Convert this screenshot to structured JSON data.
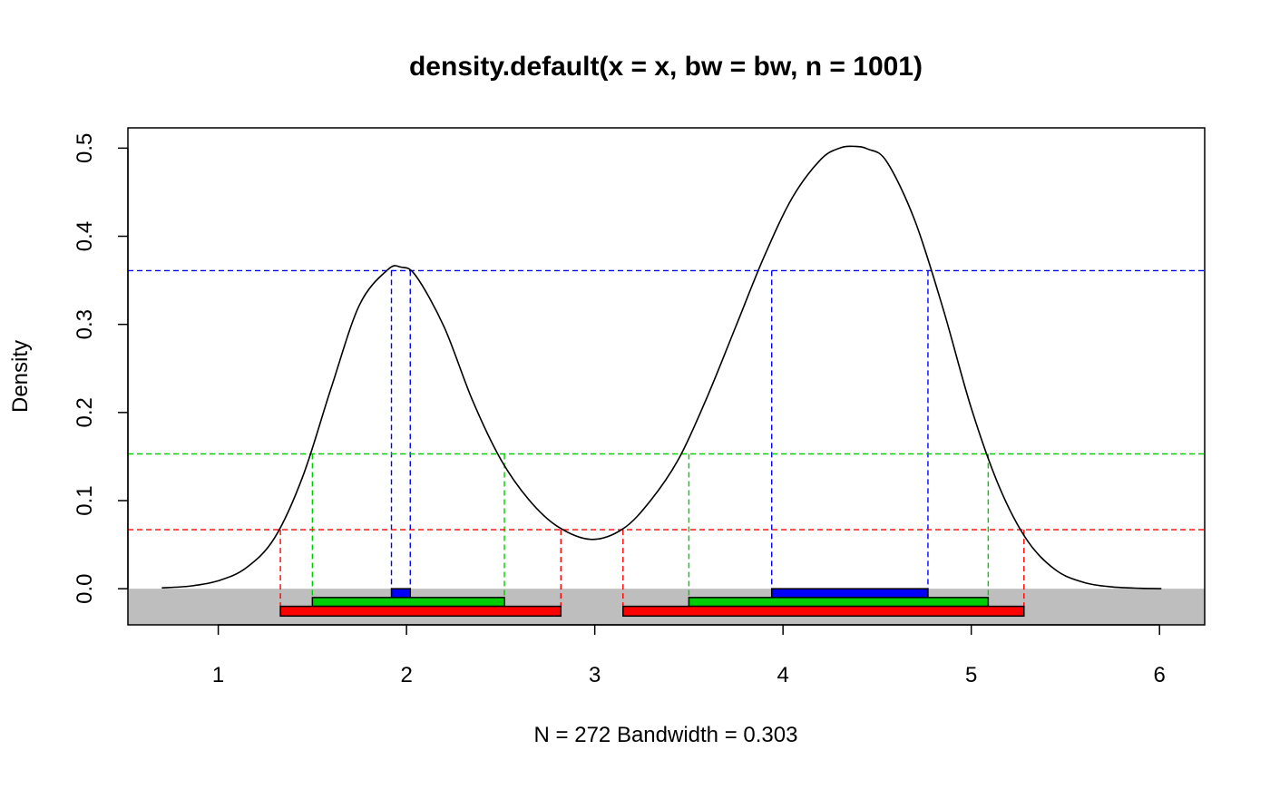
{
  "chart_data": {
    "type": "line",
    "title": "density.default(x = x, bw = bw, n = 1001)",
    "xlabel": "N = 272   Bandwidth = 0.303",
    "ylabel": "Density",
    "xlim": [
      0.52,
      6.24
    ],
    "ylim": [
      -0.041,
      0.523
    ],
    "x_ticks": [
      1,
      2,
      3,
      4,
      5,
      6
    ],
    "y_ticks": [
      0.0,
      0.1,
      0.2,
      0.3,
      0.4,
      0.5
    ],
    "x_tick_labels": [
      "1",
      "2",
      "3",
      "4",
      "5",
      "6"
    ],
    "y_tick_labels": [
      "0.0",
      "0.1",
      "0.2",
      "0.3",
      "0.4",
      "0.5"
    ],
    "grid": false,
    "density_curve": {
      "color": "#000000",
      "x": [
        0.7,
        0.85,
        1.0,
        1.15,
        1.3,
        1.45,
        1.6,
        1.75,
        1.9,
        1.97,
        2.05,
        2.2,
        2.35,
        2.5,
        2.65,
        2.8,
        2.98,
        3.15,
        3.3,
        3.45,
        3.6,
        3.75,
        3.9,
        4.05,
        4.2,
        4.3,
        4.38,
        4.45,
        4.55,
        4.7,
        4.85,
        5.0,
        5.15,
        5.3,
        5.45,
        5.6,
        5.75,
        5.9,
        6.01
      ],
      "y": [
        0.001,
        0.003,
        0.009,
        0.024,
        0.058,
        0.128,
        0.228,
        0.322,
        0.362,
        0.365,
        0.355,
        0.297,
        0.214,
        0.147,
        0.101,
        0.071,
        0.056,
        0.068,
        0.101,
        0.149,
        0.219,
        0.298,
        0.377,
        0.444,
        0.487,
        0.5,
        0.502,
        0.499,
        0.485,
        0.418,
        0.318,
        0.205,
        0.115,
        0.054,
        0.021,
        0.007,
        0.002,
        0.0005,
        0.0001
      ]
    },
    "background_band": {
      "color": "#bebebe",
      "y_range": [
        -0.041,
        0.0
      ]
    },
    "hdr_levels": [
      {
        "level": 0.361,
        "color": "#0000ff",
        "bar_y": [
          -0.01,
          0.0
        ],
        "intervals": [
          [
            1.92,
            2.02
          ],
          [
            3.94,
            4.77
          ]
        ]
      },
      {
        "level": 0.153,
        "color": "#00cd00",
        "bar_y": [
          -0.02,
          -0.01
        ],
        "intervals": [
          [
            1.5,
            2.52
          ],
          [
            3.5,
            5.09
          ]
        ]
      },
      {
        "level": 0.067,
        "color": "#ff0000",
        "bar_y": [
          -0.031,
          -0.02
        ],
        "intervals": [
          [
            1.33,
            2.82
          ],
          [
            3.15,
            5.28
          ]
        ]
      }
    ]
  }
}
